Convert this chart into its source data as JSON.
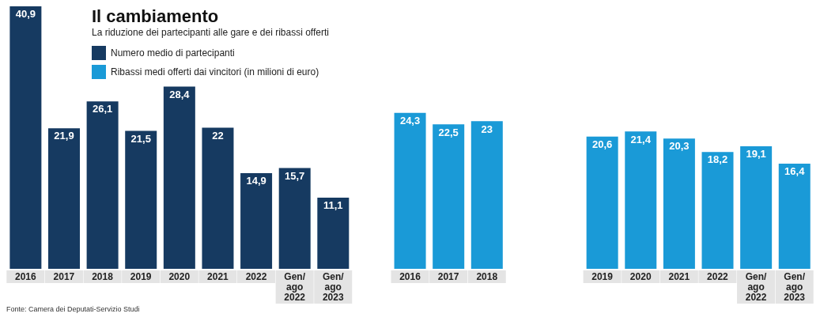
{
  "chart_data": {
    "type": "bar",
    "title": "Il cambiamento",
    "subtitle": "La riduzione dei partecipanti alle gare e dei ribassi offerti",
    "categories": [
      "2016",
      "2017",
      "2018",
      "2019",
      "2020",
      "2021",
      "2022",
      "Gen/ ago 2022",
      "Gen/ ago 2023",
      null,
      "2016",
      "2017",
      "2018",
      null,
      null,
      "2019",
      "2020",
      "2021",
      "2022",
      "Gen/ ago 2022",
      "Gen/ ago 2023"
    ],
    "series": [
      {
        "name": "Numero medio di partecipanti",
        "color": "#163a61",
        "values": [
          40.9,
          21.9,
          26.1,
          21.5,
          28.4,
          22,
          14.9,
          15.7,
          11.1,
          null,
          null,
          null,
          null,
          null,
          null,
          null,
          null,
          null,
          null,
          null,
          null
        ],
        "value_labels": [
          "40,9",
          "21,9",
          "26,1",
          "21,5",
          "28,4",
          "22",
          "14,9",
          "15,7",
          "11,1",
          null,
          null,
          null,
          null,
          null,
          null,
          null,
          null,
          null,
          null,
          null,
          null
        ]
      },
      {
        "name": "Ribassi medi offerti dai vincitori (in milioni di euro)",
        "color": "#1a9ad7",
        "values": [
          null,
          null,
          null,
          null,
          null,
          null,
          null,
          null,
          null,
          null,
          24.3,
          22.5,
          23,
          null,
          null,
          20.6,
          21.4,
          20.3,
          18.2,
          19.1,
          16.4
        ],
        "value_labels": [
          null,
          null,
          null,
          null,
          null,
          null,
          null,
          null,
          null,
          null,
          "24,3",
          "22,5",
          "23",
          null,
          null,
          "20,6",
          "21,4",
          "20,3",
          "18,2",
          "19,1",
          "16,4"
        ]
      }
    ],
    "legend": "top left",
    "annotations": [
      "Fonte: Camera dei Deputati-Servizio Studi"
    ]
  }
}
